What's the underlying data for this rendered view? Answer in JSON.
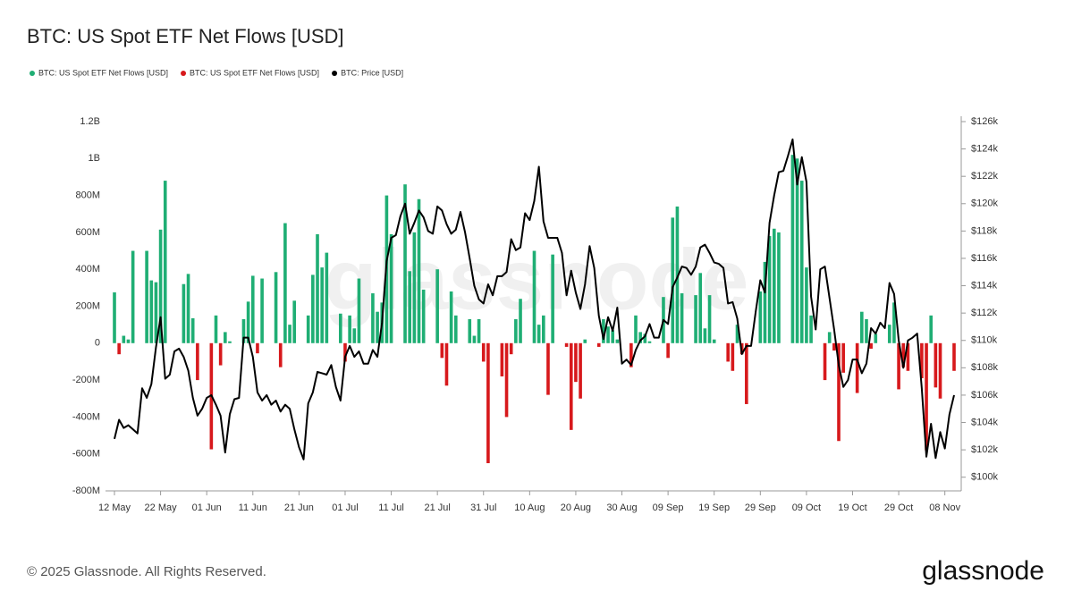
{
  "chart_data": {
    "type": "bar",
    "title": "BTC: US Spot ETF Net Flows [USD]",
    "watermark": "glassnode",
    "footer": "© 2025 Glassnode. All Rights Reserved.",
    "logo": "glassnode",
    "grid": false,
    "categories": [
      "12 May",
      null,
      null,
      null,
      null,
      null,
      null,
      null,
      null,
      null,
      "22 May",
      null,
      null,
      null,
      null,
      null,
      null,
      null,
      null,
      null,
      "01 Jun",
      null,
      null,
      null,
      null,
      null,
      null,
      null,
      null,
      null,
      "11 Jun",
      null,
      null,
      null,
      null,
      null,
      null,
      null,
      null,
      null,
      "21 Jun",
      null,
      null,
      null,
      null,
      null,
      null,
      null,
      null,
      null,
      "01 Jul",
      null,
      null,
      null,
      null,
      null,
      null,
      null,
      null,
      null,
      "11 Jul",
      null,
      null,
      null,
      null,
      null,
      null,
      null,
      null,
      null,
      "21 Jul",
      null,
      null,
      null,
      null,
      null,
      null,
      null,
      null,
      null,
      "31 Jul",
      null,
      null,
      null,
      null,
      null,
      null,
      null,
      null,
      null,
      "10 Aug",
      null,
      null,
      null,
      null,
      null,
      null,
      null,
      null,
      null,
      "20 Aug",
      null,
      null,
      null,
      null,
      null,
      null,
      null,
      null,
      null,
      "30 Aug",
      null,
      null,
      null,
      null,
      null,
      null,
      null,
      null,
      null,
      "09 Sep",
      null,
      null,
      null,
      null,
      null,
      null,
      null,
      null,
      null,
      "19 Sep",
      null,
      null,
      null,
      null,
      null,
      null,
      null,
      null,
      null,
      "29 Sep",
      null,
      null,
      null,
      null,
      null,
      null,
      null,
      null,
      null,
      "09 Oct",
      null,
      null,
      null,
      null,
      null,
      null,
      null,
      null,
      null,
      "19 Oct",
      null,
      null,
      null,
      null,
      null,
      null,
      null,
      null,
      null,
      "29 Oct",
      null,
      null,
      null,
      null,
      null,
      null,
      null,
      null,
      null,
      "08 Nov",
      null,
      null
    ],
    "ylim": [
      -800000000.0,
      1200000000.0
    ],
    "yticks": [
      {
        "value": -800000000.0,
        "label": "-800M"
      },
      {
        "value": -600000000.0,
        "label": "-600M"
      },
      {
        "value": -400000000.0,
        "label": "-400M"
      },
      {
        "value": -200000000.0,
        "label": "-200M"
      },
      0,
      {
        "value": 200000000.0,
        "label": "200M"
      },
      {
        "value": 400000000.0,
        "label": "400M"
      },
      {
        "value": 600000000.0,
        "label": "600M"
      },
      {
        "value": 800000000.0,
        "label": "800M"
      },
      {
        "value": 1000000000.0,
        "label": "1B"
      },
      {
        "value": 1200000000.0,
        "label": "1.2B"
      }
    ],
    "y2lim": [
      99000,
      126000
    ],
    "y2ticks": [
      {
        "value": 100000,
        "label": "$100k"
      },
      {
        "value": 102000,
        "label": "$102k"
      },
      {
        "value": 104000,
        "label": "$104k"
      },
      {
        "value": 106000,
        "label": "$106k"
      },
      {
        "value": 108000,
        "label": "$108k"
      },
      {
        "value": 110000,
        "label": "$110k"
      },
      {
        "value": 112000,
        "label": "$112k"
      },
      {
        "value": 114000,
        "label": "$114k"
      },
      {
        "value": 116000,
        "label": "$116k"
      },
      {
        "value": 118000,
        "label": "$118k"
      },
      {
        "value": 120000,
        "label": "$120k"
      },
      {
        "value": 122000,
        "label": "$122k"
      },
      {
        "value": 124000,
        "label": "$124k"
      },
      {
        "value": 126000,
        "label": "$126k"
      }
    ],
    "series": [
      {
        "name": "BTC: US Spot ETF Net Flows [USD]",
        "color": "#1fae74",
        "values": [
          275000000.0,
          null,
          40000000.0,
          20000000.0,
          500000000.0,
          null,
          null,
          500000000.0,
          340000000.0,
          330000000.0,
          615000000.0,
          880000000.0,
          null,
          null,
          null,
          320000000.0,
          375000000.0,
          135000000.0,
          null,
          null,
          null,
          null,
          150000000.0,
          null,
          60000000.0,
          10000000.0,
          null,
          null,
          130000000.0,
          225000000.0,
          365000000.0,
          null,
          350000000.0,
          null,
          null,
          385000000.0,
          null,
          650000000.0,
          100000000.0,
          230000000.0,
          null,
          null,
          150000000.0,
          370000000.0,
          590000000.0,
          410000000.0,
          490000000.0,
          null,
          null,
          160000000.0,
          null,
          150000000.0,
          80000000.0,
          350000000.0,
          null,
          null,
          270000000.0,
          170000000.0,
          220000000.0,
          800000000.0,
          590000000.0,
          null,
          null,
          860000000.0,
          390000000.0,
          600000000.0,
          780000000.0,
          290000000.0,
          null,
          null,
          400000000.0,
          null,
          null,
          280000000.0,
          150000000.0,
          null,
          null,
          130000000.0,
          40000000.0,
          130000000.0,
          null,
          null,
          null,
          null,
          null,
          null,
          null,
          130000000.0,
          240000000.0,
          null,
          null,
          500000000.0,
          100000000.0,
          150000000.0,
          null,
          480000000.0,
          null,
          null,
          null,
          null,
          null,
          null,
          20000000.0,
          null,
          null,
          null,
          130000000.0,
          90000000.0,
          70000000.0,
          20000000.0,
          null,
          null,
          null,
          150000000.0,
          60000000.0,
          50000000.0,
          10000000.0,
          null,
          null,
          250000000.0,
          null,
          680000000.0,
          740000000.0,
          270000000.0,
          null,
          null,
          260000000.0,
          380000000.0,
          80000000.0,
          260000000.0,
          20000000.0,
          null,
          null,
          null,
          null,
          100000000.0,
          null,
          null,
          null,
          null,
          280000000.0,
          440000000.0,
          580000000.0,
          620000000.0,
          600000000.0,
          null,
          null,
          1020000000.0,
          1000000000.0,
          880000000.0,
          410000000.0,
          150000000.0,
          null,
          null,
          null,
          60000000.0,
          null,
          null,
          null,
          null,
          null,
          null,
          170000000.0,
          130000000.0,
          null,
          50000000.0,
          null,
          null,
          100000000.0,
          220000000.0,
          null,
          null,
          null,
          null,
          null,
          null,
          null,
          150000000.0,
          null,
          null,
          null,
          null,
          null
        ]
      },
      {
        "name": "BTC: US Spot ETF Net Flows [USD]",
        "color": "#d7191c",
        "values": [
          null,
          -60000000.0,
          null,
          null,
          null,
          null,
          null,
          null,
          null,
          null,
          null,
          null,
          null,
          null,
          null,
          null,
          null,
          null,
          -200000000.0,
          null,
          null,
          -575000000.0,
          null,
          -120000000.0,
          null,
          null,
          null,
          null,
          null,
          null,
          null,
          -55000000.0,
          null,
          null,
          null,
          null,
          -130000000.0,
          null,
          null,
          null,
          null,
          null,
          null,
          null,
          null,
          null,
          null,
          null,
          null,
          null,
          -100000000.0,
          null,
          null,
          null,
          null,
          null,
          null,
          null,
          null,
          null,
          null,
          null,
          null,
          null,
          null,
          null,
          null,
          null,
          null,
          null,
          null,
          -80000000.0,
          -230000000.0,
          null,
          null,
          null,
          null,
          null,
          null,
          null,
          -100000000.0,
          -650000000.0,
          null,
          null,
          -180000000.0,
          -400000000.0,
          -60000000.0,
          null,
          null,
          null,
          null,
          null,
          null,
          null,
          -280000000.0,
          null,
          null,
          null,
          -20000000.0,
          -470000000.0,
          -210000000.0,
          -300000000.0,
          null,
          null,
          null,
          -20000000.0,
          null,
          null,
          null,
          null,
          null,
          null,
          -130000000.0,
          null,
          null,
          null,
          null,
          null,
          null,
          null,
          -80000000.0,
          null,
          null,
          null,
          null,
          null,
          null,
          null,
          null,
          null,
          null,
          null,
          null,
          -100000000.0,
          -150000000.0,
          null,
          -60000000.0,
          -330000000.0,
          null,
          null,
          null,
          null,
          null,
          null,
          null,
          null,
          null,
          null,
          null,
          null,
          null,
          null,
          null,
          null,
          -200000000.0,
          null,
          -40000000.0,
          -530000000.0,
          -160000000.0,
          null,
          null,
          -270000000.0,
          null,
          null,
          -30000000.0,
          null,
          null,
          null,
          null,
          null,
          -250000000.0,
          -130000000.0,
          -150000000.0,
          null,
          null,
          -190000000.0,
          -580000000.0,
          null,
          -240000000.0,
          -300000000.0,
          null,
          null,
          -150000000.0
        ]
      },
      {
        "name": "BTC: Price [USD]",
        "color": "#000000",
        "axis": "y2",
        "values": [
          102800,
          104200,
          103600,
          103800,
          103500,
          103200,
          106500,
          105800,
          106800,
          109500,
          111700,
          107200,
          107500,
          109200,
          109400,
          108800,
          107800,
          105800,
          104500,
          105000,
          105800,
          106000,
          105300,
          104500,
          101800,
          104600,
          105700,
          105800,
          110200,
          110200,
          108800,
          106200,
          105600,
          106000,
          105300,
          105600,
          104800,
          105300,
          105000,
          103500,
          102200,
          101300,
          105400,
          106200,
          107700,
          107600,
          107500,
          108200,
          106600,
          105600,
          108800,
          109600,
          108800,
          109200,
          108300,
          108300,
          109300,
          108800,
          111300,
          115800,
          117500,
          117700,
          119100,
          120000,
          117800,
          118600,
          119500,
          119000,
          118000,
          117800,
          119800,
          119500,
          118500,
          117800,
          118100,
          119400,
          117900,
          116000,
          114000,
          113000,
          112700,
          114100,
          113300,
          114700,
          114700,
          115000,
          117400,
          116600,
          116800,
          119300,
          118800,
          120200,
          122700,
          118700,
          117500,
          117500,
          117500,
          116400,
          113300,
          115100,
          113500,
          112300,
          114100,
          116900,
          115300,
          111800,
          110100,
          111700,
          110700,
          112400,
          108300,
          108600,
          108200,
          109300,
          110000,
          110300,
          111200,
          110200,
          110200,
          111500,
          111200,
          113900,
          114600,
          115400,
          115300,
          114800,
          115400,
          116800,
          117000,
          116400,
          115700,
          115600,
          115300,
          112700,
          112800,
          111600,
          109000,
          109600,
          109600,
          112100,
          114400,
          113500,
          118600,
          120600,
          122300,
          122400,
          123500,
          124700,
          121400,
          123400,
          121600,
          113200,
          110800,
          115200,
          115400,
          113100,
          110800,
          108200,
          106600,
          107100,
          108600,
          108600,
          107600,
          108300,
          110900,
          110500,
          111300,
          110900,
          114200,
          113400,
          110000,
          108000,
          110000,
          110200,
          110500,
          106500,
          101500,
          103900,
          101400,
          103300,
          102100,
          104600,
          106000
        ]
      }
    ]
  }
}
